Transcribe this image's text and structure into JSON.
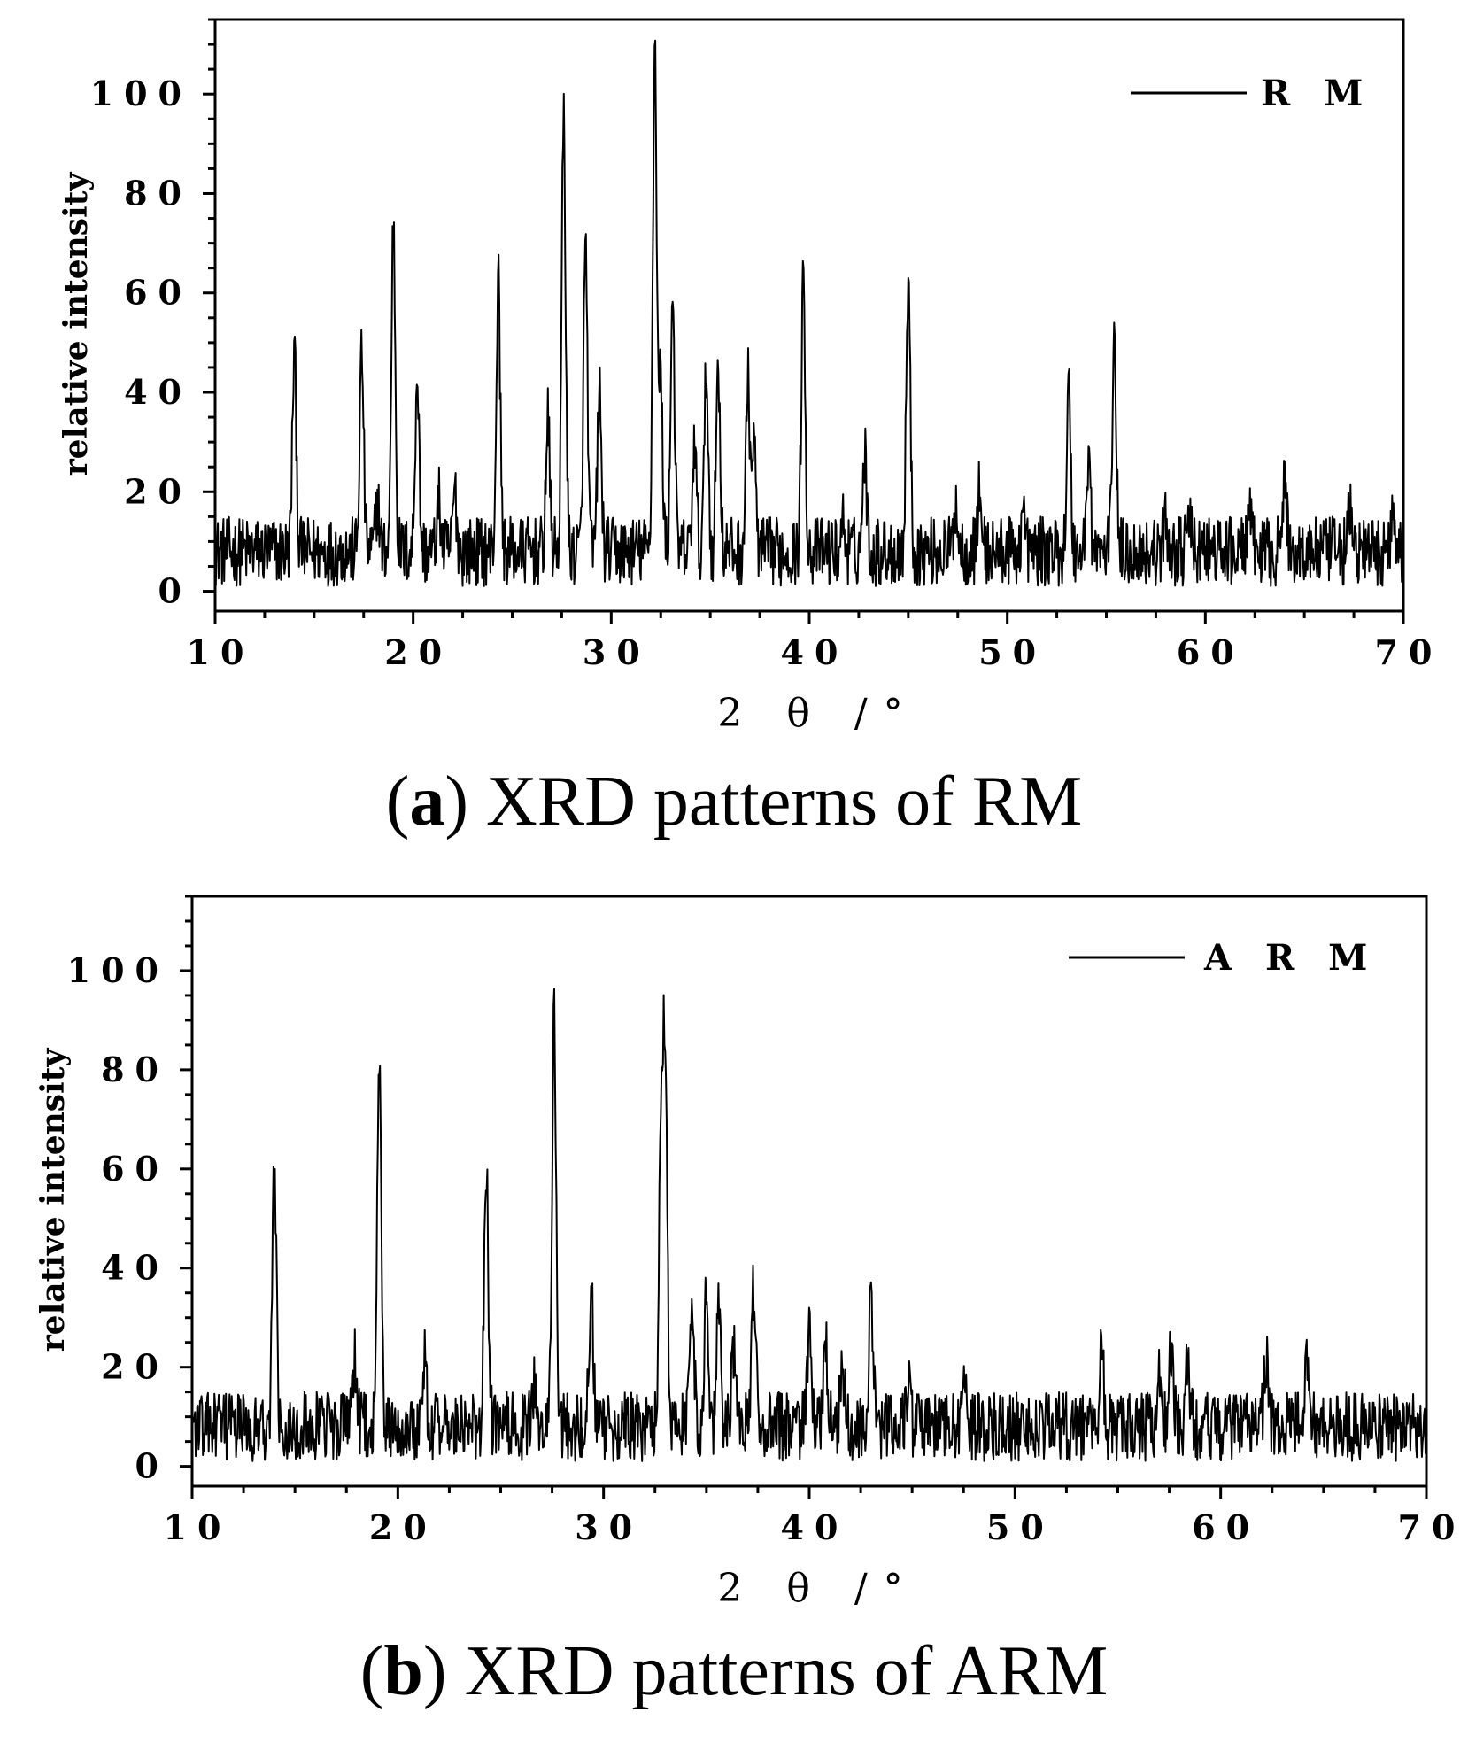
{
  "panels": [
    {
      "caption_letter": "a",
      "caption_text": "XRD patterns of RM",
      "chart": {
        "type": "line",
        "xlabel": "2 θ /°",
        "ylabel": "relative intensity",
        "xlim": [
          10,
          70
        ],
        "ylim": [
          -4,
          115
        ],
        "x_ticks": [
          10,
          20,
          30,
          40,
          50,
          60,
          70
        ],
        "y_ticks": [
          0,
          20,
          40,
          60,
          80,
          100
        ],
        "grid": false,
        "legend": "top-right",
        "series": [
          {
            "name": "R M",
            "baseline": 8,
            "peaks": [
              [
                14.0,
                48
              ],
              [
                17.4,
                48
              ],
              [
                18.2,
                18
              ],
              [
                19.0,
                74
              ],
              [
                20.2,
                44
              ],
              [
                21.3,
                18
              ],
              [
                22.1,
                20
              ],
              [
                24.3,
                62
              ],
              [
                26.8,
                34
              ],
              [
                27.6,
                96
              ],
              [
                28.7,
                70
              ],
              [
                29.4,
                40
              ],
              [
                32.2,
                110
              ],
              [
                32.5,
                42
              ],
              [
                33.1,
                60
              ],
              [
                34.2,
                30
              ],
              [
                34.8,
                44
              ],
              [
                35.4,
                46
              ],
              [
                36.9,
                42
              ],
              [
                37.2,
                30
              ],
              [
                39.7,
                62
              ],
              [
                41.7,
                14
              ],
              [
                42.8,
                28
              ],
              [
                45.0,
                64
              ],
              [
                47.4,
                18
              ],
              [
                48.6,
                20
              ],
              [
                50.8,
                16
              ],
              [
                53.1,
                40
              ],
              [
                54.1,
                28
              ],
              [
                55.4,
                52
              ],
              [
                58.0,
                14
              ],
              [
                59.2,
                14
              ],
              [
                62.2,
                16
              ],
              [
                64.0,
                22
              ],
              [
                67.3,
                16
              ],
              [
                69.5,
                18
              ]
            ]
          }
        ]
      }
    },
    {
      "caption_letter": "b",
      "caption_text": "XRD patterns of ARM",
      "chart": {
        "type": "line",
        "xlabel": "2 θ /°",
        "ylabel": "relative intensity",
        "xlim": [
          10,
          70
        ],
        "ylim": [
          -4,
          115
        ],
        "x_ticks": [
          10,
          20,
          30,
          40,
          50,
          60,
          70
        ],
        "y_ticks": [
          0,
          20,
          40,
          60,
          80,
          100
        ],
        "grid": false,
        "legend": "top-right",
        "series": [
          {
            "name": "A R M",
            "baseline": 8,
            "peaks": [
              [
                14.0,
                60
              ],
              [
                17.9,
                22
              ],
              [
                19.1,
                80
              ],
              [
                21.3,
                22
              ],
              [
                24.3,
                60
              ],
              [
                26.6,
                16
              ],
              [
                27.6,
                92
              ],
              [
                29.4,
                36
              ],
              [
                33.0,
                80
              ],
              [
                32.8,
                70
              ],
              [
                34.3,
                36
              ],
              [
                35.0,
                36
              ],
              [
                35.6,
                36
              ],
              [
                36.3,
                24
              ],
              [
                37.3,
                36
              ],
              [
                40.0,
                26
              ],
              [
                40.8,
                24
              ],
              [
                41.6,
                22
              ],
              [
                43.0,
                36
              ],
              [
                44.8,
                16
              ],
              [
                47.5,
                20
              ],
              [
                54.2,
                24
              ],
              [
                57.0,
                20
              ],
              [
                57.6,
                24
              ],
              [
                58.4,
                20
              ],
              [
                62.2,
                22
              ],
              [
                64.2,
                22
              ]
            ]
          }
        ]
      }
    }
  ]
}
